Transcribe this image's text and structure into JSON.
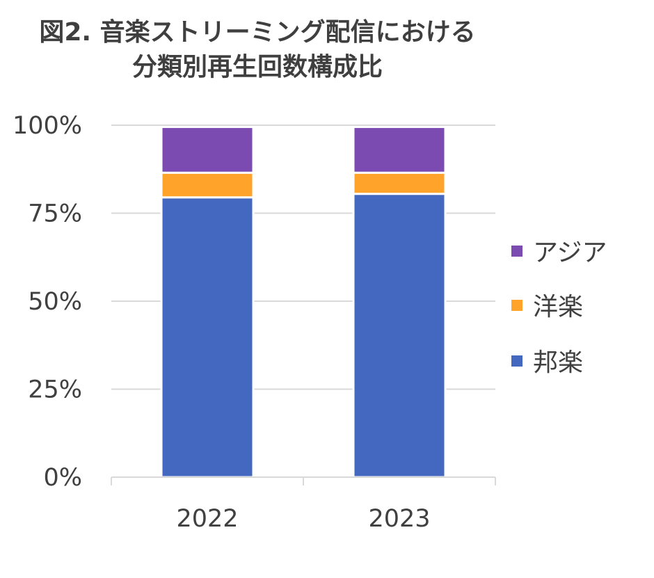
{
  "chart_data": {
    "type": "bar",
    "stacked": true,
    "title_lines": [
      "図2. 音楽ストリーミング配信における",
      "分類別再生回数構成比"
    ],
    "categories": [
      "2022",
      "2023"
    ],
    "series": [
      {
        "name": "邦楽",
        "values": [
          79.5,
          80.5
        ],
        "color": "#4468c0"
      },
      {
        "name": "洋楽",
        "values": [
          7.0,
          6.0
        ],
        "color": "#ffa32a"
      },
      {
        "name": "アジア",
        "values": [
          13.0,
          13.0
        ],
        "color": "#7c4bb2"
      }
    ],
    "yticks": [
      "0%",
      "25%",
      "50%",
      "75%",
      "100%"
    ],
    "ylim": [
      0,
      100
    ],
    "grid": true,
    "legend_position": "right"
  }
}
